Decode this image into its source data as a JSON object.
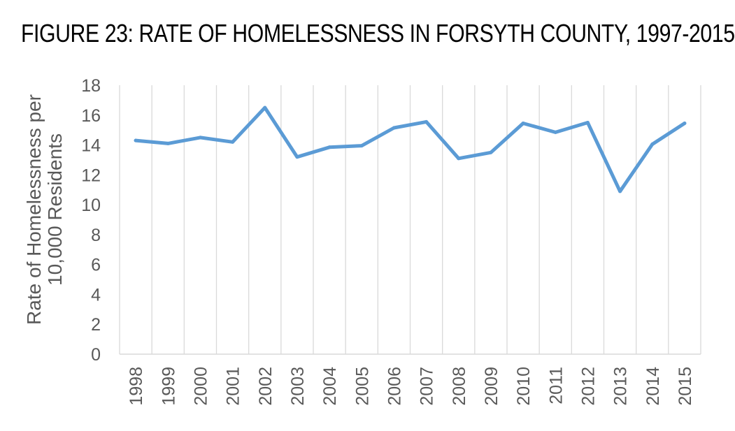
{
  "figure_title": "FIGURE 23: RATE OF HOMELESSNESS IN FORSYTH COUNTY, 1997-2015",
  "chart_data": {
    "type": "line",
    "title": "FIGURE 23: RATE OF HOMELESSNESS IN FORSYTH COUNTY, 1997-2015",
    "xlabel": "",
    "ylabel": "Rate of Homelessness per 10,000 Residents",
    "ylabel_lines": [
      "Rate of Homelessness per",
      "10,000 Residents"
    ],
    "ylim": [
      0,
      18
    ],
    "yticks": [
      0,
      2,
      4,
      6,
      8,
      10,
      12,
      14,
      16,
      18
    ],
    "grid": "vertical",
    "legend": "none",
    "categories": [
      "1998",
      "1999",
      "2000",
      "2001",
      "2002",
      "2003",
      "2004",
      "2005",
      "2006",
      "2007",
      "2008",
      "2009",
      "2010",
      "2011",
      "2012",
      "2013",
      "2014",
      "2015"
    ],
    "series": [
      {
        "values": [
          14.3,
          14.1,
          14.5,
          14.2,
          16.5,
          13.2,
          13.85,
          13.95,
          15.15,
          15.55,
          13.1,
          13.5,
          15.45,
          14.85,
          15.5,
          10.9,
          14.05,
          15.45
        ],
        "color": "#5b9bd5"
      }
    ],
    "colors": {
      "line": "#5b9bd5",
      "grid": "#d9d9d9",
      "axis_text": "#595959"
    }
  }
}
